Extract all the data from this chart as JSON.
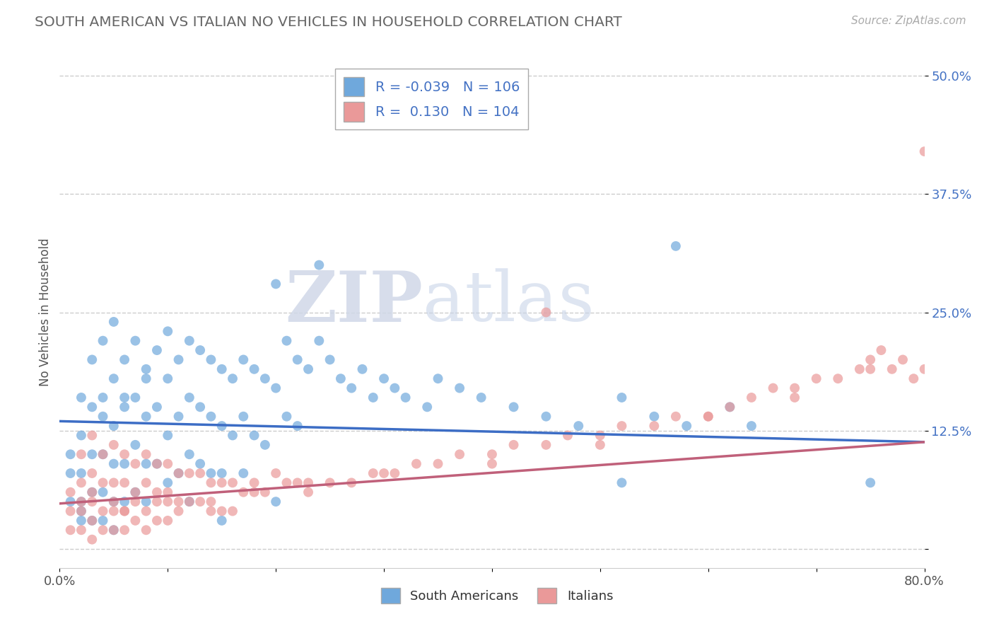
{
  "title": "SOUTH AMERICAN VS ITALIAN NO VEHICLES IN HOUSEHOLD CORRELATION CHART",
  "source": "Source: ZipAtlas.com",
  "ylabel": "No Vehicles in Household",
  "xlabel": "",
  "xlim": [
    0.0,
    0.8
  ],
  "ylim": [
    -0.02,
    0.52
  ],
  "xticks": [
    0.0,
    0.1,
    0.2,
    0.3,
    0.4,
    0.5,
    0.6,
    0.7,
    0.8
  ],
  "xticklabels": [
    "0.0%",
    "",
    "",
    "",
    "",
    "",
    "",
    "",
    "80.0%"
  ],
  "yticks": [
    0.0,
    0.125,
    0.25,
    0.375,
    0.5
  ],
  "yticklabels": [
    "",
    "12.5%",
    "25.0%",
    "37.5%",
    "50.0%"
  ],
  "blue_color": "#6fa8dc",
  "pink_color": "#ea9999",
  "blue_line_color": "#3c6dc5",
  "pink_line_color": "#c0607a",
  "R_blue": -0.039,
  "N_blue": 106,
  "R_pink": 0.13,
  "N_pink": 104,
  "watermark_zip": "ZIP",
  "watermark_atlas": "atlas",
  "grid_color": "#cccccc",
  "title_color": "#666666",
  "blue_line_start": 0.135,
  "blue_line_end": 0.113,
  "pink_line_start": 0.048,
  "pink_line_end": 0.113,
  "blue_scatter_x": [
    0.01,
    0.01,
    0.01,
    0.02,
    0.02,
    0.02,
    0.02,
    0.02,
    0.03,
    0.03,
    0.03,
    0.03,
    0.03,
    0.04,
    0.04,
    0.04,
    0.04,
    0.04,
    0.05,
    0.05,
    0.05,
    0.05,
    0.05,
    0.05,
    0.06,
    0.06,
    0.06,
    0.06,
    0.07,
    0.07,
    0.07,
    0.07,
    0.08,
    0.08,
    0.08,
    0.08,
    0.09,
    0.09,
    0.09,
    0.1,
    0.1,
    0.1,
    0.1,
    0.11,
    0.11,
    0.11,
    0.12,
    0.12,
    0.12,
    0.13,
    0.13,
    0.13,
    0.14,
    0.14,
    0.14,
    0.15,
    0.15,
    0.15,
    0.16,
    0.16,
    0.17,
    0.17,
    0.17,
    0.18,
    0.18,
    0.19,
    0.19,
    0.2,
    0.2,
    0.21,
    0.21,
    0.22,
    0.22,
    0.23,
    0.24,
    0.24,
    0.25,
    0.26,
    0.27,
    0.28,
    0.29,
    0.3,
    0.31,
    0.32,
    0.34,
    0.35,
    0.37,
    0.39,
    0.42,
    0.45,
    0.48,
    0.52,
    0.55,
    0.58,
    0.62,
    0.64,
    0.02,
    0.04,
    0.06,
    0.08,
    0.12,
    0.15,
    0.2,
    0.52,
    0.57,
    0.75
  ],
  "blue_scatter_y": [
    0.1,
    0.08,
    0.05,
    0.16,
    0.12,
    0.08,
    0.05,
    0.03,
    0.2,
    0.15,
    0.1,
    0.06,
    0.03,
    0.22,
    0.16,
    0.1,
    0.06,
    0.03,
    0.24,
    0.18,
    0.13,
    0.09,
    0.05,
    0.02,
    0.2,
    0.15,
    0.09,
    0.05,
    0.22,
    0.16,
    0.11,
    0.06,
    0.19,
    0.14,
    0.09,
    0.05,
    0.21,
    0.15,
    0.09,
    0.23,
    0.18,
    0.12,
    0.07,
    0.2,
    0.14,
    0.08,
    0.22,
    0.16,
    0.1,
    0.21,
    0.15,
    0.09,
    0.2,
    0.14,
    0.08,
    0.19,
    0.13,
    0.08,
    0.18,
    0.12,
    0.2,
    0.14,
    0.08,
    0.19,
    0.12,
    0.18,
    0.11,
    0.28,
    0.17,
    0.22,
    0.14,
    0.2,
    0.13,
    0.19,
    0.3,
    0.22,
    0.2,
    0.18,
    0.17,
    0.19,
    0.16,
    0.18,
    0.17,
    0.16,
    0.15,
    0.18,
    0.17,
    0.16,
    0.15,
    0.14,
    0.13,
    0.16,
    0.14,
    0.13,
    0.15,
    0.13,
    0.04,
    0.14,
    0.16,
    0.18,
    0.05,
    0.03,
    0.05,
    0.07,
    0.32,
    0.07
  ],
  "pink_scatter_x": [
    0.01,
    0.01,
    0.01,
    0.02,
    0.02,
    0.02,
    0.02,
    0.03,
    0.03,
    0.03,
    0.03,
    0.03,
    0.04,
    0.04,
    0.04,
    0.04,
    0.05,
    0.05,
    0.05,
    0.05,
    0.06,
    0.06,
    0.06,
    0.06,
    0.07,
    0.07,
    0.07,
    0.08,
    0.08,
    0.08,
    0.08,
    0.09,
    0.09,
    0.09,
    0.1,
    0.1,
    0.1,
    0.11,
    0.11,
    0.12,
    0.12,
    0.13,
    0.13,
    0.14,
    0.14,
    0.15,
    0.15,
    0.16,
    0.17,
    0.18,
    0.19,
    0.2,
    0.21,
    0.22,
    0.23,
    0.25,
    0.27,
    0.29,
    0.31,
    0.33,
    0.35,
    0.37,
    0.4,
    0.42,
    0.45,
    0.47,
    0.5,
    0.52,
    0.55,
    0.57,
    0.6,
    0.62,
    0.64,
    0.66,
    0.68,
    0.7,
    0.72,
    0.74,
    0.75,
    0.76,
    0.77,
    0.78,
    0.79,
    0.8,
    0.03,
    0.05,
    0.07,
    0.09,
    0.11,
    0.14,
    0.18,
    0.23,
    0.3,
    0.4,
    0.5,
    0.6,
    0.68,
    0.75,
    0.8,
    0.02,
    0.06,
    0.1,
    0.16,
    0.45
  ],
  "pink_scatter_y": [
    0.06,
    0.04,
    0.02,
    0.1,
    0.07,
    0.04,
    0.02,
    0.12,
    0.08,
    0.05,
    0.03,
    0.01,
    0.1,
    0.07,
    0.04,
    0.02,
    0.11,
    0.07,
    0.04,
    0.02,
    0.1,
    0.07,
    0.04,
    0.02,
    0.09,
    0.06,
    0.03,
    0.1,
    0.07,
    0.04,
    0.02,
    0.09,
    0.06,
    0.03,
    0.09,
    0.06,
    0.03,
    0.08,
    0.05,
    0.08,
    0.05,
    0.08,
    0.05,
    0.07,
    0.04,
    0.07,
    0.04,
    0.07,
    0.06,
    0.07,
    0.06,
    0.08,
    0.07,
    0.07,
    0.06,
    0.07,
    0.07,
    0.08,
    0.08,
    0.09,
    0.09,
    0.1,
    0.1,
    0.11,
    0.11,
    0.12,
    0.12,
    0.13,
    0.13,
    0.14,
    0.14,
    0.15,
    0.16,
    0.17,
    0.17,
    0.18,
    0.18,
    0.19,
    0.2,
    0.21,
    0.19,
    0.2,
    0.18,
    0.19,
    0.06,
    0.05,
    0.05,
    0.05,
    0.04,
    0.05,
    0.06,
    0.07,
    0.08,
    0.09,
    0.11,
    0.14,
    0.16,
    0.19,
    0.42,
    0.05,
    0.04,
    0.05,
    0.04,
    0.25
  ]
}
